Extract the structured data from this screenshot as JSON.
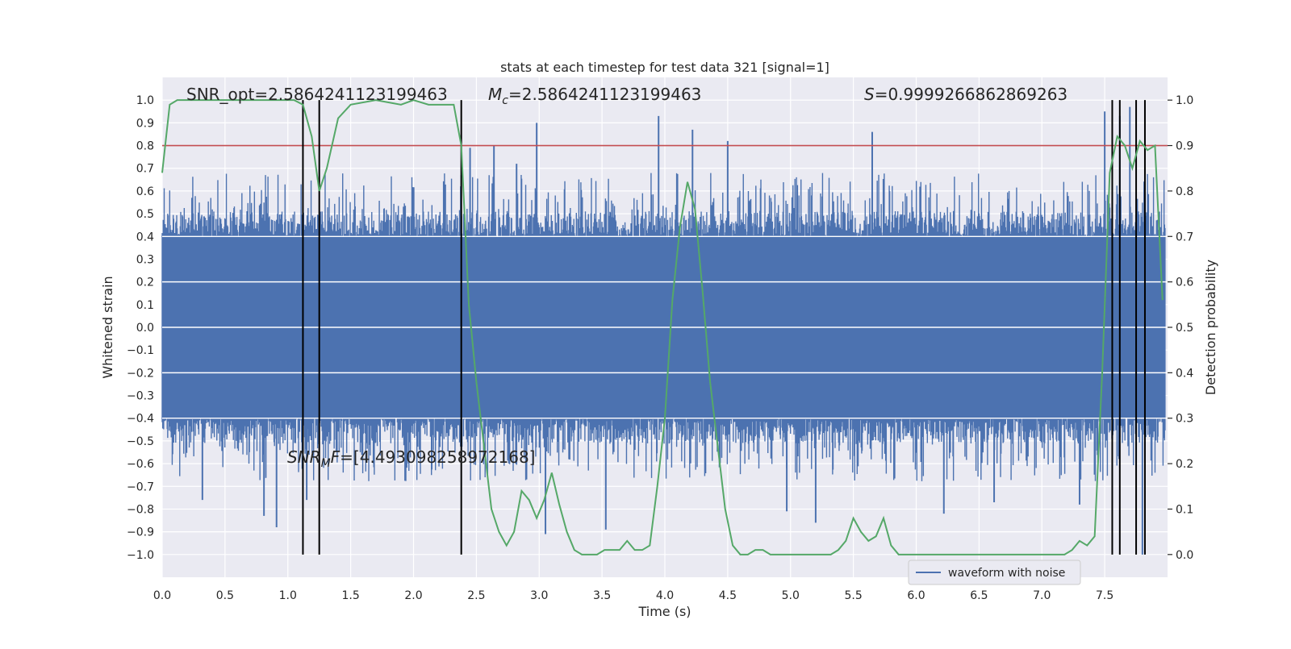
{
  "chart_data": {
    "type": "line",
    "title": "stats at each timestep for test data 321 [signal=1]",
    "xlabel": "Time (s)",
    "ylabel": "Whitened strain",
    "y2label": "Detection probability",
    "xlim": [
      0.0,
      8.0
    ],
    "ylim": [
      -1.1,
      1.1
    ],
    "y2lim": [
      -0.05,
      1.05
    ],
    "xticks": [
      "0.0",
      "0.5",
      "1.0",
      "1.5",
      "2.0",
      "2.5",
      "3.0",
      "3.5",
      "4.0",
      "4.5",
      "5.0",
      "5.5",
      "6.0",
      "6.5",
      "7.0",
      "7.5"
    ],
    "yticks": [
      "1.0",
      "0.9",
      "0.8",
      "0.7",
      "0.6",
      "0.5",
      "0.4",
      "0.3",
      "0.2",
      "0.1",
      "0.0",
      "−0.1",
      "−0.2",
      "−0.3",
      "−0.4",
      "−0.5",
      "−0.6",
      "−0.7",
      "−0.8",
      "−0.9",
      "−1.0"
    ],
    "y2ticks": [
      "1.0",
      "0.9",
      "0.8",
      "0.7",
      "0.6",
      "0.5",
      "0.4",
      "0.3",
      "0.2",
      "0.1",
      "0.0"
    ],
    "grid": true,
    "legend": {
      "position": "lower-right",
      "entries": [
        "waveform with noise"
      ]
    },
    "annotations": {
      "snr_opt": "SNR_opt=2.5864241123199463",
      "mc_symbol": "M",
      "mc_sub": "c",
      "mc_value": "=2.5864241123199463",
      "s_symbol": "S",
      "s_value": "=0.9999266862869263",
      "snrmf_symbol": "SNR",
      "snrmf_sub": "M",
      "snrmf_mid": "F",
      "snrmf_value": "=[4.493098258972168]"
    },
    "colors": {
      "waveform": "#4c72b0",
      "probability": "#55a868",
      "threshold": "#c44e52",
      "markers": "#000000",
      "background": "#eaeaf2",
      "grid": "#ffffff"
    },
    "series": [
      {
        "name": "waveform with noise",
        "role": "waveform",
        "band_envelope": {
          "upper": 0.4,
          "lower": -0.4
        },
        "spike_peaks": [
          {
            "x": 0.91,
            "y": -0.88
          },
          {
            "x": 0.81,
            "y": -0.83
          },
          {
            "x": 0.32,
            "y": -0.76
          },
          {
            "x": 1.15,
            "y": -0.76
          },
          {
            "x": 2.45,
            "y": 0.79
          },
          {
            "x": 2.64,
            "y": 0.8
          },
          {
            "x": 2.82,
            "y": 0.72
          },
          {
            "x": 2.98,
            "y": 0.9
          },
          {
            "x": 3.05,
            "y": -0.91
          },
          {
            "x": 3.53,
            "y": -0.89
          },
          {
            "x": 3.95,
            "y": 0.93
          },
          {
            "x": 4.22,
            "y": 0.87
          },
          {
            "x": 4.5,
            "y": 0.82
          },
          {
            "x": 4.97,
            "y": -0.81
          },
          {
            "x": 5.2,
            "y": -0.86
          },
          {
            "x": 5.65,
            "y": 0.86
          },
          {
            "x": 6.22,
            "y": -0.82
          },
          {
            "x": 6.62,
            "y": -0.77
          },
          {
            "x": 7.3,
            "y": -0.78
          },
          {
            "x": 7.5,
            "y": 0.95
          },
          {
            "x": 7.62,
            "y": 0.93
          },
          {
            "x": 7.7,
            "y": 0.97
          },
          {
            "x": 7.8,
            "y": -1.0
          }
        ]
      },
      {
        "name": "",
        "role": "detection probability",
        "axis": "right",
        "x": [
          0.0,
          0.06,
          0.12,
          0.3,
          0.6,
          0.9,
          1.05,
          1.12,
          1.19,
          1.25,
          1.31,
          1.4,
          1.5,
          1.7,
          1.9,
          2.0,
          2.12,
          2.25,
          2.32,
          2.38,
          2.44,
          2.5,
          2.56,
          2.62,
          2.68,
          2.74,
          2.8,
          2.86,
          2.92,
          2.98,
          3.04,
          3.1,
          3.16,
          3.22,
          3.28,
          3.34,
          3.4,
          3.46,
          3.52,
          3.58,
          3.64,
          3.7,
          3.76,
          3.82,
          3.88,
          3.94,
          4.0,
          4.06,
          4.12,
          4.18,
          4.24,
          4.3,
          4.36,
          4.42,
          4.48,
          4.54,
          4.6,
          4.66,
          4.72,
          4.78,
          4.84,
          4.9,
          4.96,
          5.02,
          5.08,
          5.14,
          5.2,
          5.26,
          5.32,
          5.38,
          5.44,
          5.5,
          5.56,
          5.62,
          5.68,
          5.74,
          5.8,
          5.86,
          5.92,
          6.0,
          6.2,
          6.3,
          6.5,
          7.0,
          7.12,
          7.18,
          7.24,
          7.3,
          7.36,
          7.42,
          7.48,
          7.54,
          7.6,
          7.66,
          7.72,
          7.78,
          7.84,
          7.9,
          7.96
        ],
        "y": [
          0.84,
          0.99,
          1.0,
          1.0,
          1.0,
          1.0,
          1.0,
          0.99,
          0.92,
          0.8,
          0.85,
          0.96,
          0.99,
          1.0,
          0.99,
          1.0,
          0.99,
          0.99,
          0.99,
          0.9,
          0.55,
          0.38,
          0.24,
          0.1,
          0.05,
          0.02,
          0.05,
          0.14,
          0.12,
          0.08,
          0.12,
          0.18,
          0.11,
          0.05,
          0.01,
          0.0,
          0.0,
          0.0,
          0.01,
          0.01,
          0.01,
          0.03,
          0.01,
          0.01,
          0.02,
          0.15,
          0.3,
          0.56,
          0.72,
          0.82,
          0.76,
          0.58,
          0.38,
          0.24,
          0.1,
          0.02,
          0.0,
          0.0,
          0.01,
          0.01,
          0.0,
          0.0,
          0.0,
          0.0,
          0.0,
          0.0,
          0.0,
          0.0,
          0.0,
          0.01,
          0.03,
          0.08,
          0.05,
          0.03,
          0.04,
          0.08,
          0.02,
          0.0,
          0.0,
          0.0,
          0.0,
          0.0,
          0.0,
          0.0,
          0.0,
          0.0,
          0.01,
          0.03,
          0.02,
          0.04,
          0.4,
          0.84,
          0.92,
          0.9,
          0.85,
          0.91,
          0.89,
          0.9,
          0.56
        ]
      },
      {
        "name": "",
        "role": "threshold",
        "axis": "left",
        "y": 0.8
      }
    ],
    "vertical_markers_x": [
      1.12,
      1.25,
      2.38,
      7.56,
      7.62,
      7.75,
      7.82
    ]
  }
}
